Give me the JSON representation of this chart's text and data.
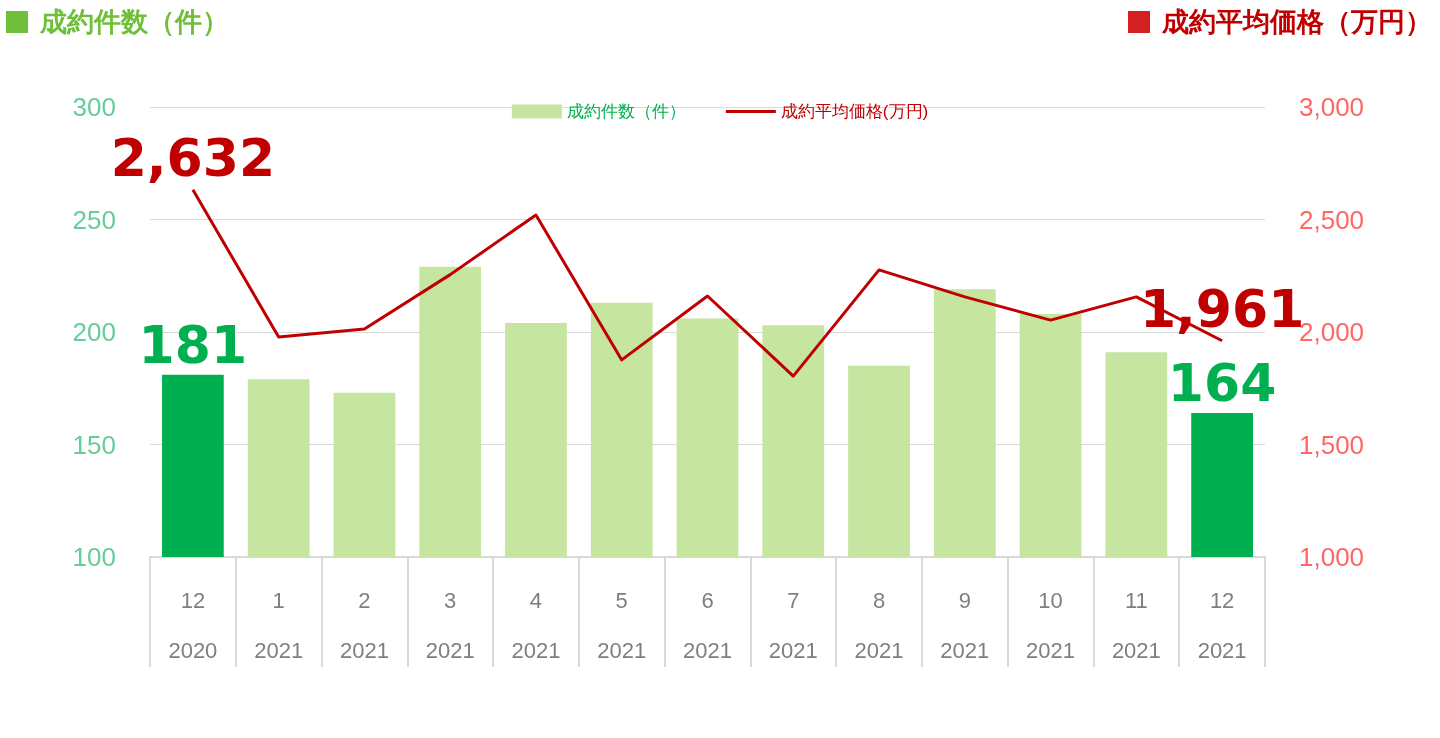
{
  "chart_data": {
    "type": "bar",
    "ylabel": "成約件数（件）",
    "y2label": "成約平均価格（万円）",
    "categories": [
      "12\n2020",
      "1\n2021",
      "2\n2021",
      "3\n2021",
      "4\n2021",
      "5\n2021",
      "6\n2021",
      "7\n2021",
      "8\n2021",
      "9\n2021",
      "10\n2021",
      "11\n2021",
      "12\n2021"
    ],
    "series": [
      {
        "name": "成約件数（件）",
        "color": "#c5e5a0",
        "colors": [
          "#00b050",
          "#c5e5a0",
          "#c5e5a0",
          "#c5e5a0",
          "#c5e5a0",
          "#c5e5a0",
          "#c5e5a0",
          "#c5e5a0",
          "#c5e5a0",
          "#c5e5a0",
          "#c5e5a0",
          "#c5e5a0",
          "#00b050"
        ],
        "values": [
          181,
          179,
          173,
          229,
          204,
          213,
          206,
          203,
          185,
          219,
          208,
          191,
          164
        ],
        "value_labels": [
          "181",
          null,
          null,
          null,
          null,
          null,
          null,
          null,
          null,
          null,
          null,
          null,
          "164"
        ]
      },
      {
        "name": "成約平均価格(万円)",
        "type": "line",
        "axis": "y2",
        "color": "#c00000",
        "values": [
          2632,
          1978,
          2013,
          2255,
          2520,
          1876,
          2160,
          1804,
          2276,
          2156,
          2053,
          2156,
          1961
        ],
        "value_labels": [
          "2,632",
          null,
          null,
          null,
          null,
          null,
          null,
          null,
          null,
          null,
          null,
          null,
          "1,961"
        ]
      }
    ],
    "ylim": [
      100,
      300
    ],
    "yticks": [
      100,
      150,
      200,
      250,
      300
    ],
    "y2lim": [
      1000,
      3000
    ],
    "y2ticks": [
      {
        "value": 1000,
        "label": "1,000"
      },
      {
        "value": 1500,
        "label": "1,500"
      },
      {
        "value": 2000,
        "label": "2,000"
      },
      {
        "value": 2500,
        "label": "2,500"
      },
      {
        "value": 3000,
        "label": "3,000"
      }
    ],
    "grid": "y",
    "legend": "top",
    "marker": "none"
  }
}
